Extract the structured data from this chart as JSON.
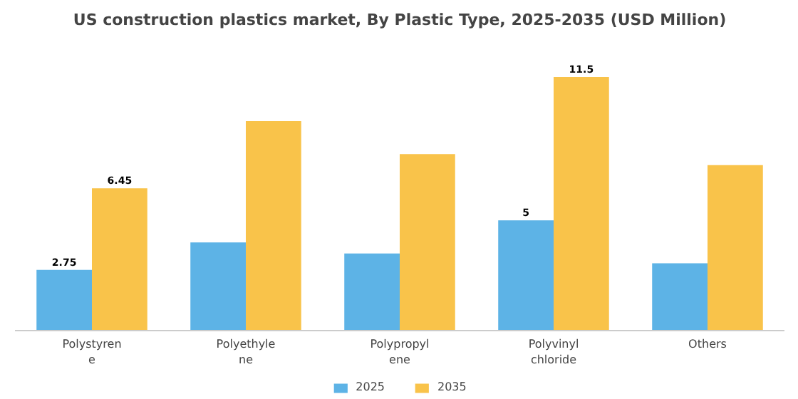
{
  "chart_data": {
    "type": "bar",
    "title": "US construction plastics market, By Plastic Type, 2025-2035 (USD Million)",
    "categories": [
      "Polystyrene",
      "Polyethylene",
      "Polypropylene",
      "Polyvinyl chloride",
      "Others"
    ],
    "series": [
      {
        "name": "2025",
        "color": "#5db3e6",
        "values": [
          2.75,
          4.0,
          3.5,
          5,
          3.05
        ],
        "value_labels": [
          "2.75",
          null,
          null,
          "5",
          null
        ]
      },
      {
        "name": "2035",
        "color": "#f9c34a",
        "values": [
          6.45,
          9.5,
          8.0,
          11.5,
          7.5
        ],
        "value_labels": [
          "6.45",
          null,
          null,
          "11.5",
          null
        ]
      }
    ],
    "legend": "bottom"
  }
}
